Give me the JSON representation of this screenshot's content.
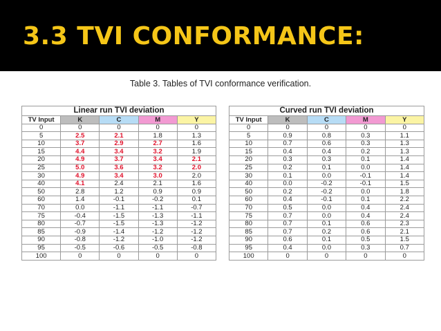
{
  "slide": {
    "title": "3.3 TVI CONFORMANCE:",
    "caption": "Table 3. Tables of TVI conformance verification."
  },
  "colors": {
    "header_bg": "#000000",
    "title": "#f5c618",
    "K": "#bdbdbd",
    "C": "#b7dcf5",
    "M": "#f29ad2",
    "Y": "#fbf4a4",
    "highlight_text": "#e0102a"
  },
  "tables": [
    {
      "title": "Linear run TVI deviation",
      "headers": [
        "TV Input",
        "K",
        "C",
        "M",
        "Y"
      ],
      "rows": [
        [
          "0",
          "0",
          "0",
          "0",
          "0"
        ],
        [
          "5",
          "2.5",
          "2.1",
          "1.8",
          "1.3"
        ],
        [
          "10",
          "3.7",
          "2.9",
          "2.7",
          "1.6"
        ],
        [
          "15",
          "4.4",
          "3.4",
          "3.2",
          "1.9"
        ],
        [
          "20",
          "4.9",
          "3.7",
          "3.4",
          "2.1"
        ],
        [
          "25",
          "5.0",
          "3.6",
          "3.2",
          "2.0"
        ],
        [
          "30",
          "4.9",
          "3.4",
          "3.0",
          "2.0"
        ],
        [
          "40",
          "4.1",
          "2.4",
          "2.1",
          "1.6"
        ],
        [
          "50",
          "2.8",
          "1.2",
          "0.9",
          "0.9"
        ],
        [
          "60",
          "1.4",
          "-0.1",
          "-0.2",
          "0.1"
        ],
        [
          "70",
          "0.0",
          "-1.1",
          "-1.1",
          "-0.7"
        ],
        [
          "75",
          "-0.4",
          "-1.5",
          "-1.3",
          "-1.1"
        ],
        [
          "80",
          "-0.7",
          "-1.5",
          "-1.3",
          "-1.2"
        ],
        [
          "85",
          "-0.9",
          "-1.4",
          "-1.2",
          "-1.2"
        ],
        [
          "90",
          "-0.8",
          "-1.2",
          "-1.0",
          "-1.2"
        ],
        [
          "95",
          "-0.5",
          "-0.6",
          "-0.5",
          "-0.8"
        ],
        [
          "100",
          "0",
          "0",
          "0",
          "0"
        ]
      ],
      "highlighted": [
        [
          1,
          1
        ],
        [
          1,
          2
        ],
        [
          2,
          1
        ],
        [
          2,
          2
        ],
        [
          2,
          3
        ],
        [
          3,
          1
        ],
        [
          3,
          2
        ],
        [
          3,
          3
        ],
        [
          4,
          1
        ],
        [
          4,
          2
        ],
        [
          4,
          3
        ],
        [
          4,
          4
        ],
        [
          5,
          1
        ],
        [
          5,
          2
        ],
        [
          5,
          3
        ],
        [
          5,
          4
        ],
        [
          6,
          1
        ],
        [
          6,
          2
        ],
        [
          6,
          3
        ],
        [
          7,
          1
        ]
      ]
    },
    {
      "title": "Curved run TVI deviation",
      "headers": [
        "TV Input",
        "K",
        "C",
        "M",
        "Y"
      ],
      "rows": [
        [
          "0",
          "0",
          "0",
          "0",
          "0"
        ],
        [
          "5",
          "0.9",
          "0.8",
          "0.3",
          "1.1"
        ],
        [
          "10",
          "0.7",
          "0.6",
          "0.3",
          "1.3"
        ],
        [
          "15",
          "0.4",
          "0.4",
          "0.2",
          "1.3"
        ],
        [
          "20",
          "0.3",
          "0.3",
          "0.1",
          "1.4"
        ],
        [
          "25",
          "0.2",
          "0.1",
          "0.0",
          "1.4"
        ],
        [
          "30",
          "0.1",
          "0.0",
          "-0.1",
          "1.4"
        ],
        [
          "40",
          "0.0",
          "-0.2",
          "-0.1",
          "1.5"
        ],
        [
          "50",
          "0.2",
          "-0.2",
          "0.0",
          "1.8"
        ],
        [
          "60",
          "0.4",
          "-0.1",
          "0.1",
          "2.2"
        ],
        [
          "70",
          "0.5",
          "0.0",
          "0.4",
          "2.4"
        ],
        [
          "75",
          "0.7",
          "0.0",
          "0.4",
          "2.4"
        ],
        [
          "80",
          "0.7",
          "0.1",
          "0.6",
          "2.3"
        ],
        [
          "85",
          "0.7",
          "0.2",
          "0.6",
          "2.1"
        ],
        [
          "90",
          "0.6",
          "0.1",
          "0.5",
          "1.5"
        ],
        [
          "95",
          "0.4",
          "0.0",
          "0.3",
          "0.7"
        ],
        [
          "100",
          "0",
          "0",
          "0",
          "0"
        ]
      ],
      "highlighted": []
    }
  ]
}
